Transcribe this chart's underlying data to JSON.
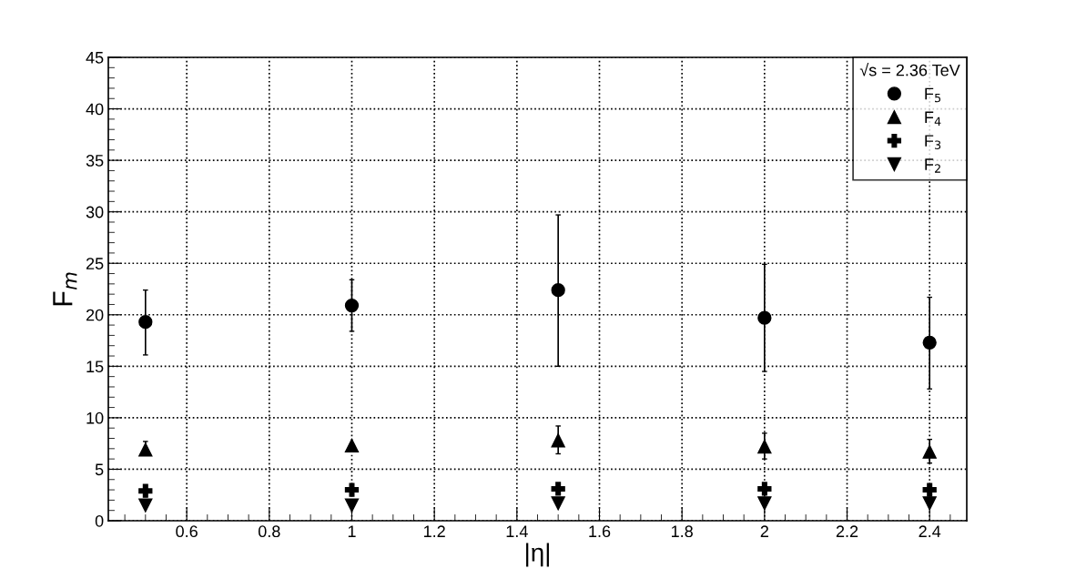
{
  "chart_data": {
    "type": "scatter",
    "xlabel": "|η|",
    "ylabel": "F$_{m}$",
    "legend_title": "√s = 2.36 TeV",
    "legend": "top right",
    "grid": true,
    "x": [
      0.5,
      1.0,
      1.5,
      2.0,
      2.4
    ],
    "xlim": [
      0.41,
      2.49
    ],
    "xticks": [
      0.6,
      0.8,
      1,
      1.2,
      1.4,
      1.6,
      1.8,
      2,
      2.2,
      2.4
    ],
    "ylim": [
      0,
      45
    ],
    "yticks": [
      0,
      5,
      10,
      15,
      20,
      25,
      30,
      35,
      40,
      45
    ],
    "series": [
      {
        "name": "F$_{5}$",
        "color": "#000000",
        "marker": "circle",
        "values": [
          19.3,
          20.9,
          22.4,
          19.7,
          17.3
        ],
        "errors": [
          [
            16.1,
            22.4
          ],
          [
            18.4,
            23.4
          ],
          [
            15.0,
            29.7
          ],
          [
            14.5,
            24.9
          ],
          [
            12.8,
            21.7
          ]
        ]
      },
      {
        "name": "F$_{4}$",
        "color": "#000000",
        "marker": "triangle",
        "values": [
          6.9,
          7.3,
          7.8,
          7.2,
          6.7
        ],
        "errors": [
          [
            6.9,
            7.7
          ],
          null,
          [
            6.5,
            9.2
          ],
          [
            6.0,
            8.5
          ],
          [
            5.6,
            7.9
          ]
        ]
      },
      {
        "name": "F$_{3}$",
        "color": "#000000",
        "marker": "cross",
        "values": [
          2.9,
          3.0,
          3.1,
          3.1,
          3.0
        ]
      },
      {
        "name": "F$_{2}$",
        "color": "#000000",
        "marker": "triangle_down",
        "values": [
          1.5,
          1.5,
          1.7,
          1.7,
          1.7
        ]
      }
    ]
  }
}
